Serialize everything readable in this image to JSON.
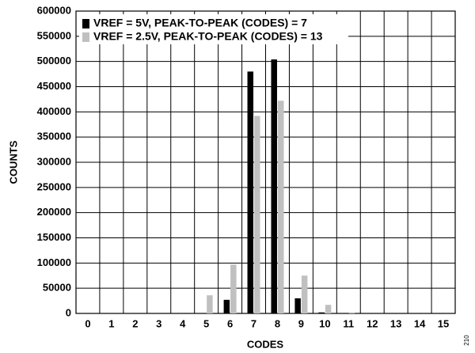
{
  "chart_data": {
    "type": "bar",
    "xlabel": "CODES",
    "ylabel": "COUNTS",
    "categories": [
      0,
      1,
      2,
      3,
      4,
      5,
      6,
      7,
      8,
      9,
      10,
      11,
      12,
      13,
      14,
      15
    ],
    "series": [
      {
        "name": "VREF = 5V, PEAK-TO-PEAK (CODES) = 7",
        "color": "#000000",
        "values": [
          0,
          0,
          0,
          0,
          0,
          0,
          27000,
          480000,
          504000,
          30000,
          2000,
          0,
          0,
          0,
          0,
          0
        ]
      },
      {
        "name": "VREF = 2.5V, PEAK-TO-PEAK (CODES) = 13",
        "color": "#c0c0c0",
        "values": [
          0,
          0,
          0,
          0,
          0,
          36000,
          97000,
          392000,
          422000,
          75000,
          17000,
          2000,
          0,
          0,
          0,
          0
        ]
      }
    ],
    "ylim": [
      0,
      600000
    ],
    "yticks": [
      0,
      50000,
      100000,
      150000,
      200000,
      250000,
      300000,
      350000,
      400000,
      450000,
      500000,
      550000,
      600000
    ],
    "grid": true,
    "legend": "upper left",
    "annotations": [
      "210"
    ]
  }
}
